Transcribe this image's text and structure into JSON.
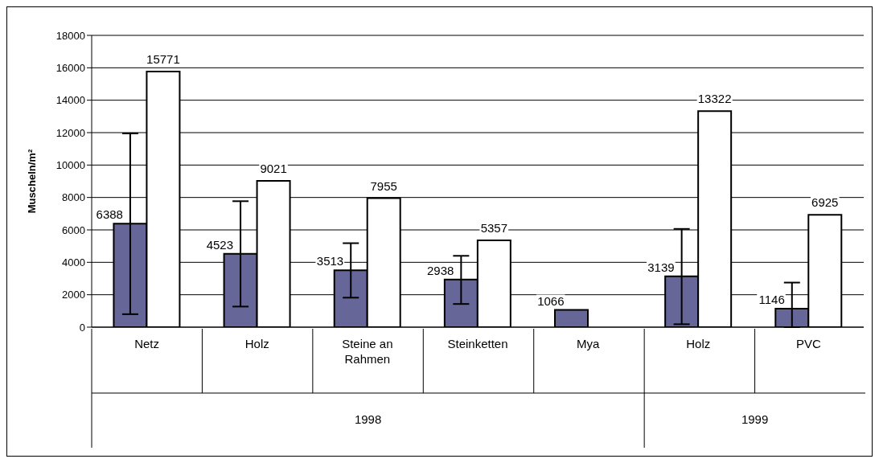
{
  "chart_data": {
    "type": "bar",
    "ylabel": "Muscheln/m²",
    "categories": [
      "Netz",
      "Holz",
      "Steine an Rahmen",
      "Steinketten",
      "Mya",
      "Holz",
      "PVC"
    ],
    "series": [
      {
        "color": "#666699",
        "values": [
          6388,
          4523,
          3513,
          2938,
          1066,
          3139,
          1146
        ],
        "errors": [
          [
            800,
            11950
          ],
          [
            1270,
            7770
          ],
          [
            1820,
            5180
          ],
          [
            1430,
            4400
          ],
          null,
          [
            180,
            6060
          ],
          [
            0,
            2750
          ]
        ]
      },
      {
        "color": "#ffffff",
        "values": [
          15771,
          9021,
          7955,
          5357,
          null,
          13322,
          6925
        ]
      }
    ],
    "ylim": [
      0,
      18000
    ],
    "yticks": [
      0,
      2000,
      4000,
      6000,
      8000,
      10000,
      12000,
      14000,
      16000,
      18000
    ],
    "grid": "y",
    "data_labels": true,
    "annotations": [
      "1998",
      "1999"
    ]
  }
}
